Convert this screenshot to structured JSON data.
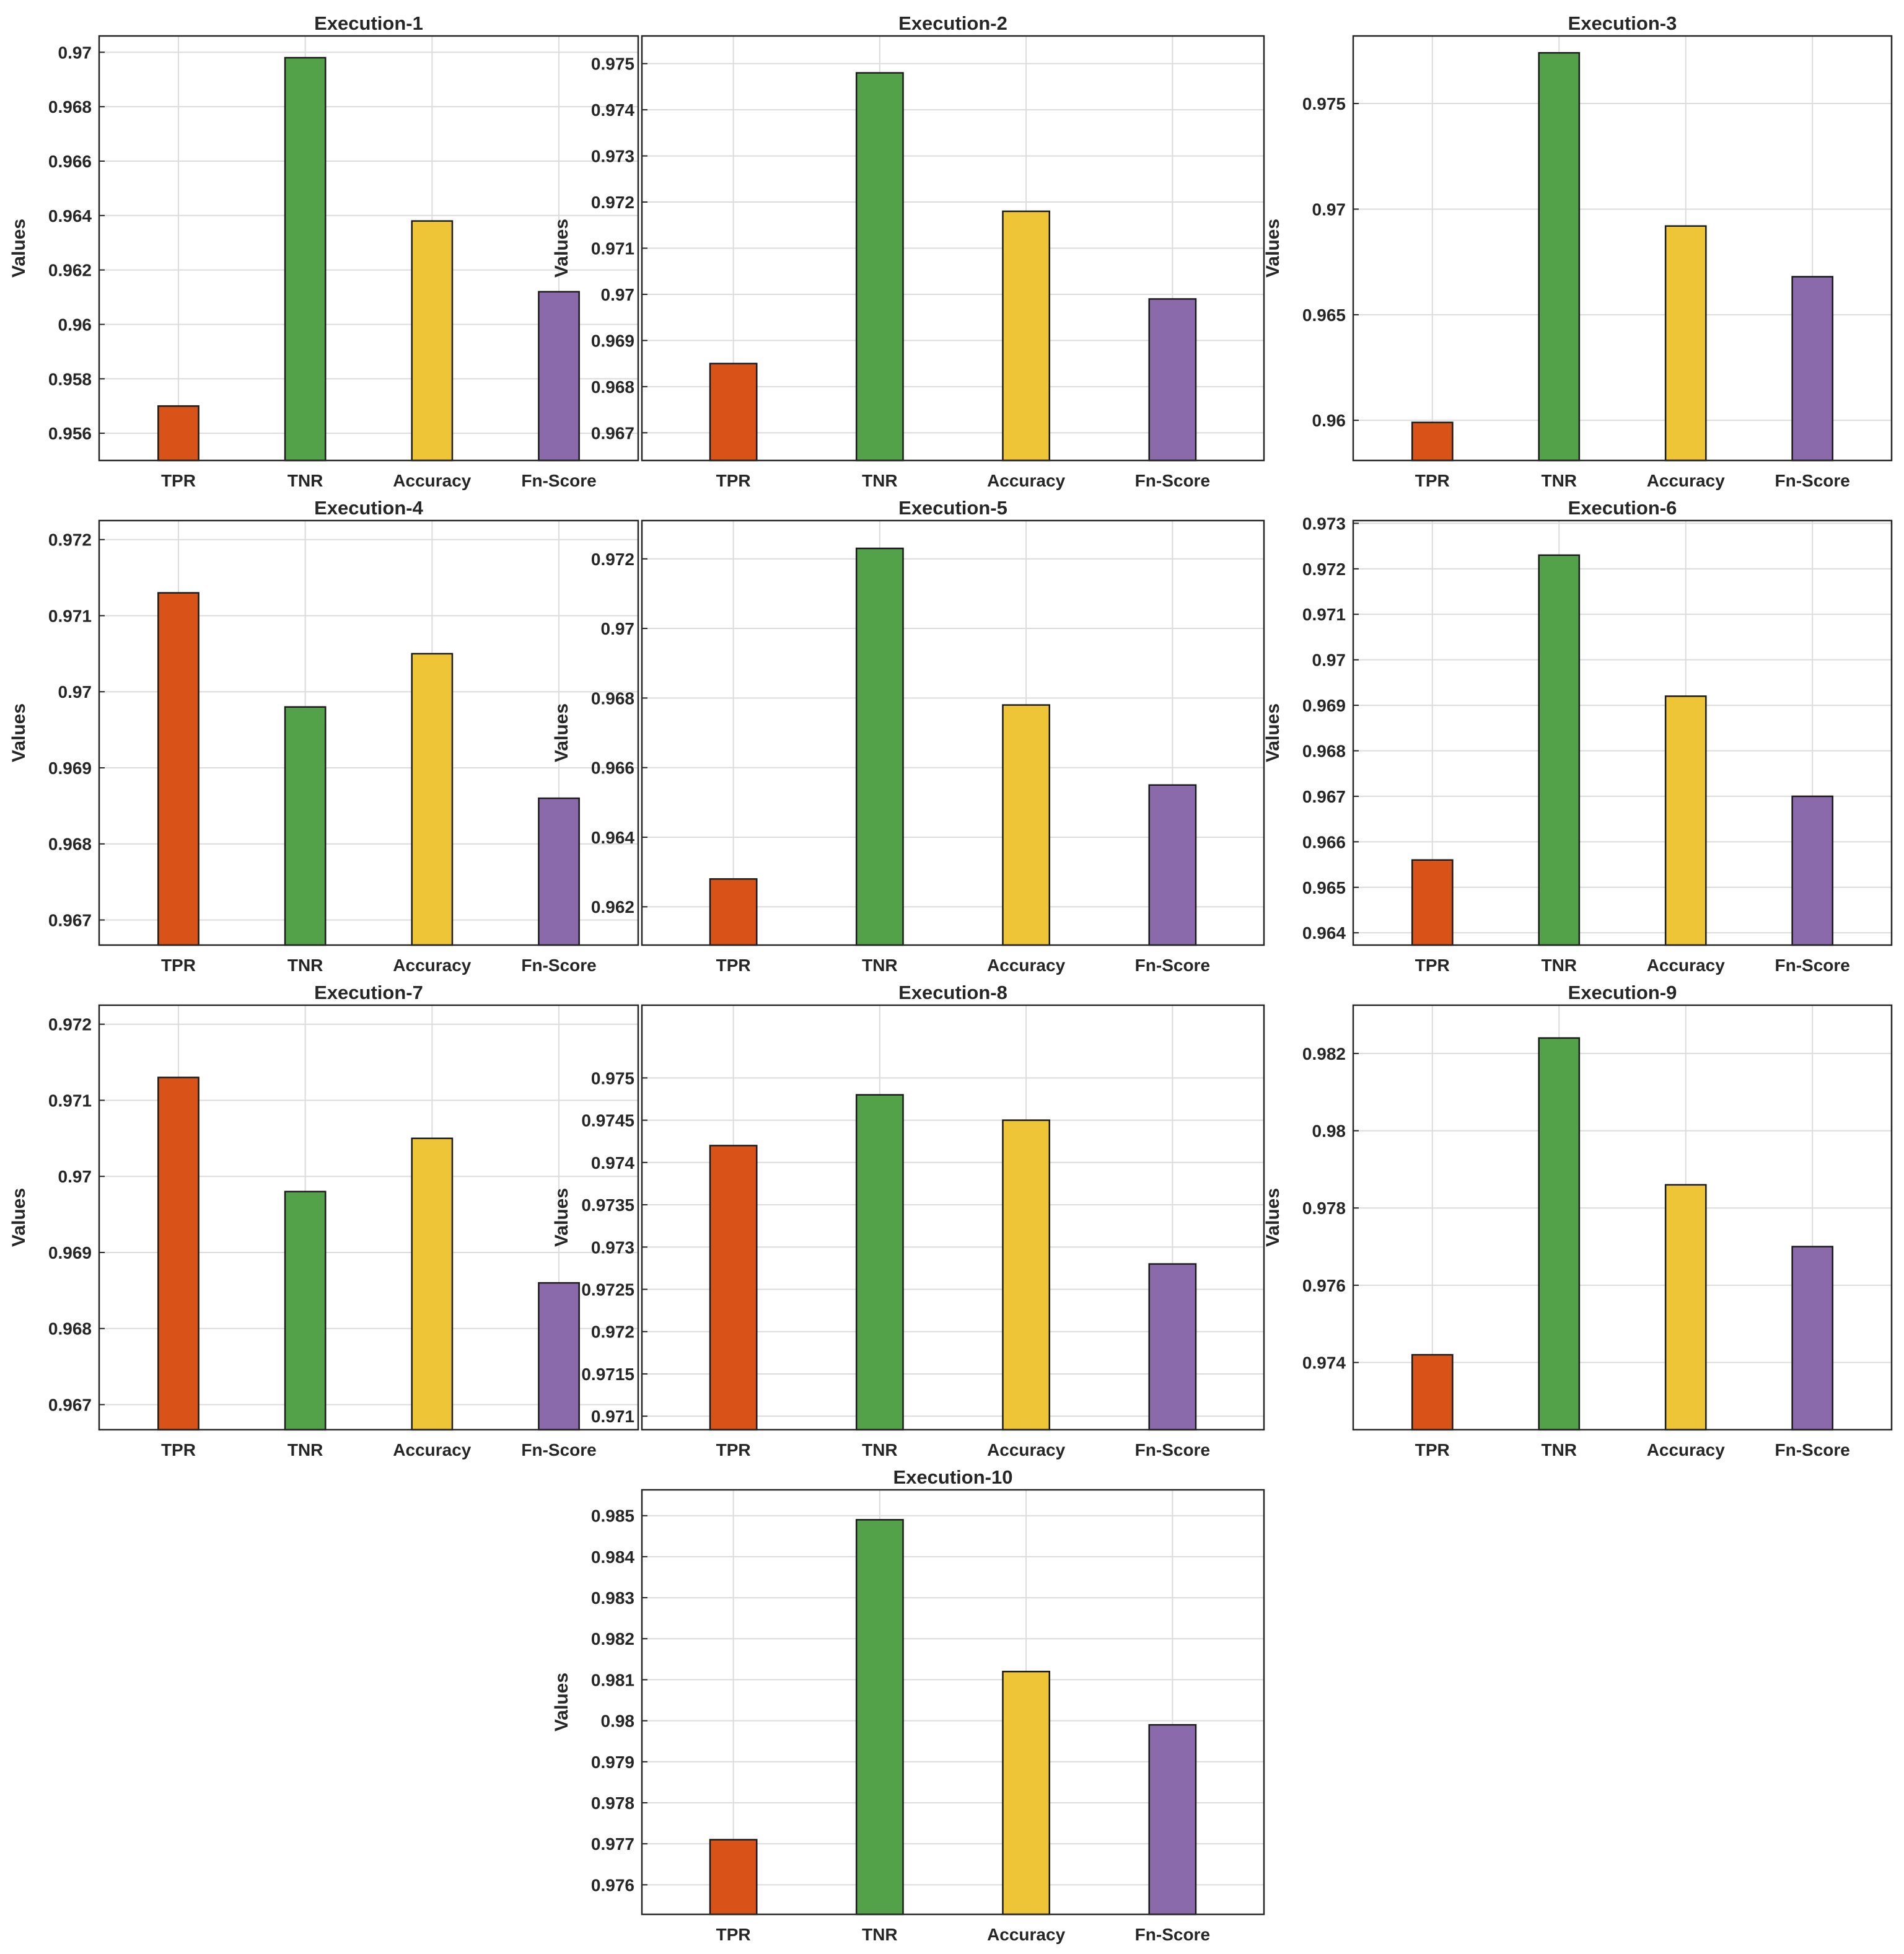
{
  "colors": {
    "TPR": "#D95319",
    "TNR": "#53A24A",
    "Accuracy": "#EDC537",
    "Fn-Score": "#8A6AAA"
  },
  "chart_data": [
    {
      "type": "bar",
      "title": "Execution-1",
      "ylabel": "Values",
      "categories": [
        "TPR",
        "TNR",
        "Accuracy",
        "Fn-Score"
      ],
      "values": [
        0.957,
        0.9698,
        0.9638,
        0.9612
      ],
      "ylim": [
        0.955,
        0.9706
      ],
      "yticks": [
        0.956,
        0.958,
        0.96,
        0.962,
        0.964,
        0.966,
        0.968,
        0.97
      ],
      "ytick_labels": [
        "0.956",
        "0.958",
        "0.96",
        "0.962",
        "0.964",
        "0.966",
        "0.968",
        "0.97"
      ],
      "grid": true
    },
    {
      "type": "bar",
      "title": "Execution-2",
      "ylabel": "Values",
      "categories": [
        "TPR",
        "TNR",
        "Accuracy",
        "Fn-Score"
      ],
      "values": [
        0.9685,
        0.9748,
        0.9718,
        0.9699
      ],
      "ylim": [
        0.9664,
        0.9756
      ],
      "yticks": [
        0.967,
        0.968,
        0.969,
        0.97,
        0.971,
        0.972,
        0.973,
        0.974,
        0.975
      ],
      "ytick_labels": [
        "0.967",
        "0.968",
        "0.969",
        "0.97",
        "0.971",
        "0.972",
        "0.973",
        "0.974",
        "0.975"
      ],
      "grid": true
    },
    {
      "type": "bar",
      "title": "Execution-3",
      "ylabel": "Values",
      "categories": [
        "TPR",
        "TNR",
        "Accuracy",
        "Fn-Score"
      ],
      "values": [
        0.9599,
        0.9774,
        0.9692,
        0.9668
      ],
      "ylim": [
        0.9581,
        0.9782
      ],
      "yticks": [
        0.96,
        0.965,
        0.97,
        0.975
      ],
      "ytick_labels": [
        "0.96",
        "0.965",
        "0.97",
        "0.975"
      ],
      "grid": true
    },
    {
      "type": "bar",
      "title": "Execution-4",
      "ylabel": "Values",
      "categories": [
        "TPR",
        "TNR",
        "Accuracy",
        "Fn-Score"
      ],
      "values": [
        0.9713,
        0.9698,
        0.9705,
        0.9686
      ],
      "ylim": [
        0.96667,
        0.97225
      ],
      "yticks": [
        0.967,
        0.968,
        0.969,
        0.97,
        0.971,
        0.972
      ],
      "ytick_labels": [
        "0.967",
        "0.968",
        "0.969",
        "0.97",
        "0.971",
        "0.972"
      ],
      "grid": true
    },
    {
      "type": "bar",
      "title": "Execution-5",
      "ylabel": "Values",
      "categories": [
        "TPR",
        "TNR",
        "Accuracy",
        "Fn-Score"
      ],
      "values": [
        0.9628,
        0.9723,
        0.9678,
        0.9655
      ],
      "ylim": [
        0.9609,
        0.9731
      ],
      "yticks": [
        0.962,
        0.964,
        0.966,
        0.968,
        0.97,
        0.972
      ],
      "ytick_labels": [
        "0.962",
        "0.964",
        "0.966",
        "0.968",
        "0.97",
        "0.972"
      ],
      "grid": true
    },
    {
      "type": "bar",
      "title": "Execution-6",
      "ylabel": "Values",
      "categories": [
        "TPR",
        "TNR",
        "Accuracy",
        "Fn-Score"
      ],
      "values": [
        0.9656,
        0.9723,
        0.9692,
        0.967
      ],
      "ylim": [
        0.96373,
        0.97306
      ],
      "yticks": [
        0.964,
        0.965,
        0.966,
        0.967,
        0.968,
        0.969,
        0.97,
        0.971,
        0.972,
        0.973
      ],
      "ytick_labels": [
        "0.964",
        "0.965",
        "0.966",
        "0.967",
        "0.968",
        "0.969",
        "0.97",
        "0.971",
        "0.972",
        "0.973"
      ],
      "grid": true
    },
    {
      "type": "bar",
      "title": "Execution-7",
      "ylabel": "Values",
      "categories": [
        "TPR",
        "TNR",
        "Accuracy",
        "Fn-Score"
      ],
      "values": [
        0.9713,
        0.9698,
        0.9705,
        0.9686
      ],
      "ylim": [
        0.96667,
        0.97225
      ],
      "yticks": [
        0.967,
        0.968,
        0.969,
        0.97,
        0.971,
        0.972
      ],
      "ytick_labels": [
        "0.967",
        "0.968",
        "0.969",
        "0.97",
        "0.971",
        "0.972"
      ],
      "grid": true
    },
    {
      "type": "bar",
      "title": "Execution-8",
      "ylabel": "Values",
      "categories": [
        "TPR",
        "TNR",
        "Accuracy",
        "Fn-Score"
      ],
      "values": [
        0.9742,
        0.9748,
        0.9745,
        0.9728
      ],
      "ylim": [
        0.97084,
        0.97586
      ],
      "yticks": [
        0.971,
        0.9715,
        0.972,
        0.9725,
        0.973,
        0.9735,
        0.974,
        0.9745,
        0.975
      ],
      "ytick_labels": [
        "0.971",
        "0.9715",
        "0.972",
        "0.9725",
        "0.973",
        "0.9735",
        "0.974",
        "0.9745",
        "0.975"
      ],
      "grid": true
    },
    {
      "type": "bar",
      "title": "Execution-9",
      "ylabel": "Values",
      "categories": [
        "TPR",
        "TNR",
        "Accuracy",
        "Fn-Score"
      ],
      "values": [
        0.9742,
        0.9824,
        0.9786,
        0.977
      ],
      "ylim": [
        0.97226,
        0.98325
      ],
      "yticks": [
        0.974,
        0.976,
        0.978,
        0.98,
        0.982
      ],
      "ytick_labels": [
        "0.974",
        "0.976",
        "0.978",
        "0.98",
        "0.982"
      ],
      "grid": true
    },
    {
      "type": "bar",
      "title": "Execution-10",
      "ylabel": "Values",
      "categories": [
        "TPR",
        "TNR",
        "Accuracy",
        "Fn-Score"
      ],
      "values": [
        0.9771,
        0.9849,
        0.9812,
        0.9799
      ],
      "ylim": [
        0.97528,
        0.98563
      ],
      "yticks": [
        0.976,
        0.977,
        0.978,
        0.979,
        0.98,
        0.981,
        0.982,
        0.983,
        0.984,
        0.985
      ],
      "ytick_labels": [
        "0.976",
        "0.977",
        "0.978",
        "0.979",
        "0.98",
        "0.981",
        "0.982",
        "0.983",
        "0.984",
        "0.985"
      ],
      "grid": true
    }
  ]
}
